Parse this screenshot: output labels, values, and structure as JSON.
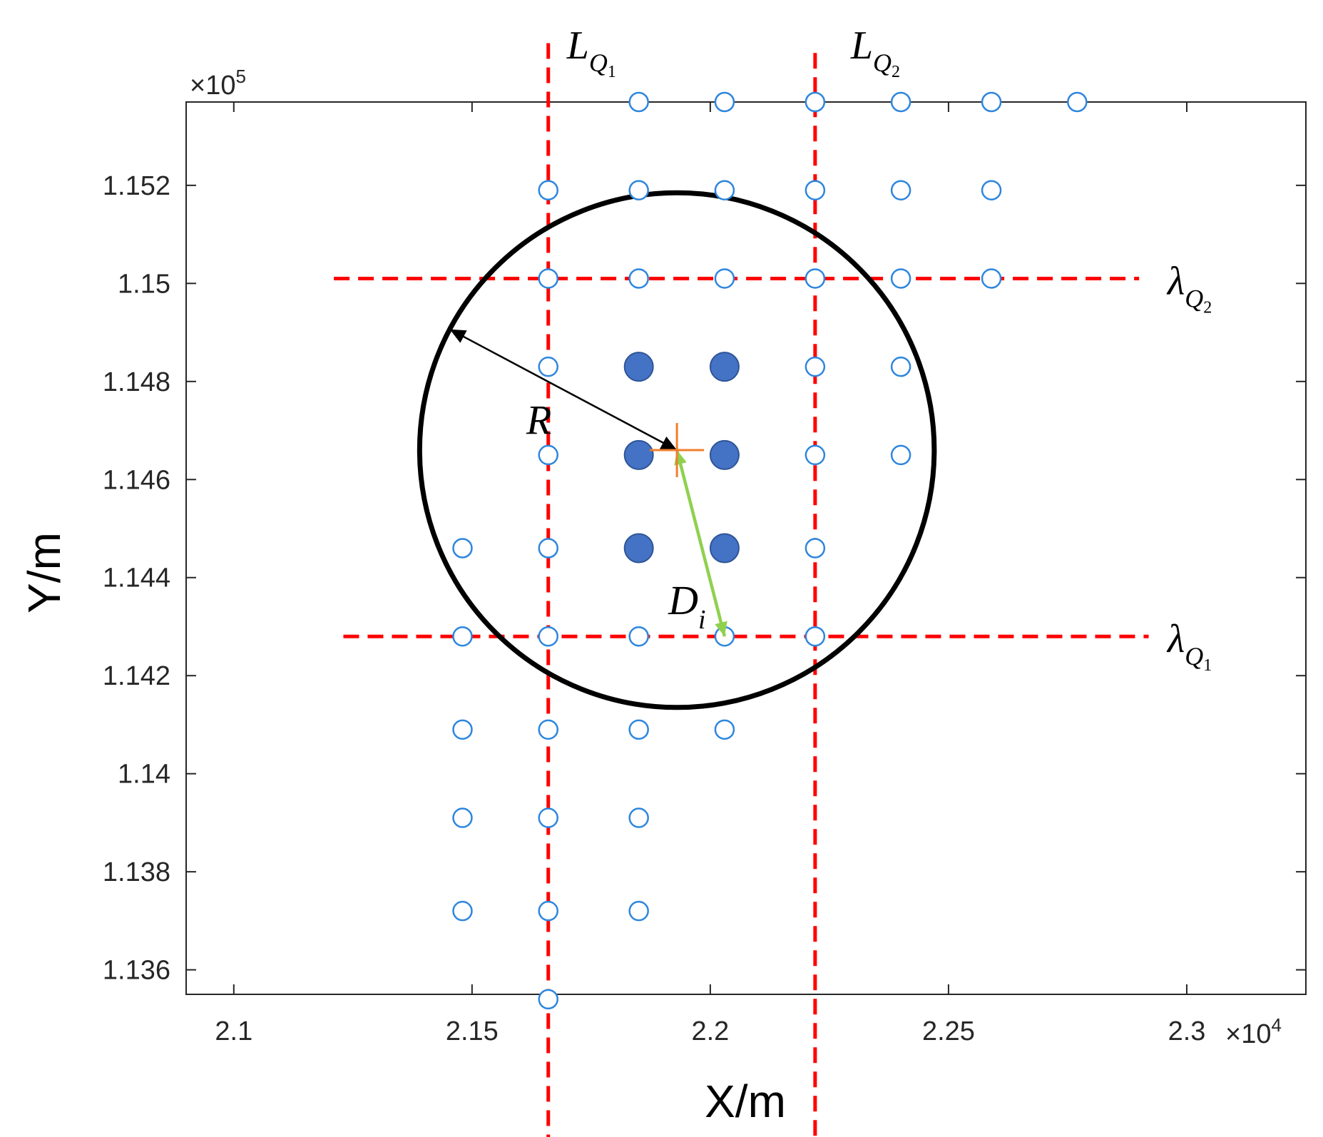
{
  "chart_data": {
    "type": "scatter",
    "title": "",
    "xlabel": "X/m",
    "ylabel": "Y/m",
    "x_exponent_label": "×10",
    "x_exponent_power": "4",
    "y_exponent_label": "×10",
    "y_exponent_power": "5",
    "xlim": [
      2.09,
      2.325
    ],
    "ylim": [
      1.1355,
      1.1537
    ],
    "xticks": [
      2.1,
      2.15,
      2.2,
      2.25,
      2.3
    ],
    "xtick_labels": [
      "2.1",
      "2.15",
      "2.2",
      "2.25",
      "2.3"
    ],
    "yticks": [
      1.136,
      1.138,
      1.14,
      1.142,
      1.144,
      1.146,
      1.148,
      1.15,
      1.152
    ],
    "ytick_labels": [
      "1.136",
      "1.138",
      "1.14",
      "1.142",
      "1.144",
      "1.146",
      "1.148",
      "1.15",
      "1.152"
    ],
    "grid": false,
    "series": [
      {
        "marker": "open-circle",
        "color": "#2e86de",
        "points": [
          [
            2.185,
            1.1537
          ],
          [
            2.203,
            1.1537
          ],
          [
            2.222,
            1.1537
          ],
          [
            2.24,
            1.1537
          ],
          [
            2.259,
            1.1537
          ],
          [
            2.277,
            1.1537
          ],
          [
            2.166,
            1.1519
          ],
          [
            2.185,
            1.1519
          ],
          [
            2.203,
            1.1519
          ],
          [
            2.222,
            1.1519
          ],
          [
            2.24,
            1.1519
          ],
          [
            2.259,
            1.1519
          ],
          [
            2.166,
            1.1501
          ],
          [
            2.185,
            1.1501
          ],
          [
            2.203,
            1.1501
          ],
          [
            2.222,
            1.1501
          ],
          [
            2.24,
            1.1501
          ],
          [
            2.259,
            1.1501
          ],
          [
            2.166,
            1.1483
          ],
          [
            2.222,
            1.1483
          ],
          [
            2.24,
            1.1483
          ],
          [
            2.166,
            1.1465
          ],
          [
            2.222,
            1.1465
          ],
          [
            2.24,
            1.1465
          ],
          [
            2.148,
            1.1446
          ],
          [
            2.166,
            1.1446
          ],
          [
            2.222,
            1.1446
          ],
          [
            2.148,
            1.1428
          ],
          [
            2.166,
            1.1428
          ],
          [
            2.185,
            1.1428
          ],
          [
            2.203,
            1.1428
          ],
          [
            2.222,
            1.1428
          ],
          [
            2.148,
            1.1409
          ],
          [
            2.166,
            1.1409
          ],
          [
            2.185,
            1.1409
          ],
          [
            2.203,
            1.1409
          ],
          [
            2.148,
            1.1391
          ],
          [
            2.166,
            1.1391
          ],
          [
            2.185,
            1.1391
          ],
          [
            2.148,
            1.1372
          ],
          [
            2.166,
            1.1372
          ],
          [
            2.185,
            1.1372
          ],
          [
            2.166,
            1.1354
          ]
        ]
      },
      {
        "marker": "filled-circle",
        "color": "#4472c4",
        "points": [
          [
            2.185,
            1.1483
          ],
          [
            2.203,
            1.1483
          ],
          [
            2.185,
            1.1465
          ],
          [
            2.203,
            1.1465
          ],
          [
            2.185,
            1.1446
          ],
          [
            2.203,
            1.1446
          ]
        ]
      }
    ],
    "center": {
      "x": 2.193,
      "y": 1.1466,
      "color": "#f07f2e"
    },
    "circle": {
      "cx": 2.193,
      "cy": 1.1466,
      "r": 0.054
    },
    "vlines": [
      {
        "x": 2.166,
        "y_from": 1.1322,
        "y_to": 1.1549,
        "label": "L",
        "sub": "Q",
        "sub2": "1"
      },
      {
        "x": 2.222,
        "y_from": 1.1324,
        "y_to": 1.1547,
        "label": "L",
        "sub": "Q",
        "sub2": "2"
      }
    ],
    "hlines": [
      {
        "y": 1.1501,
        "x_from": 2.121,
        "x_to": 2.29,
        "label": "λ",
        "sub": "Q",
        "sub2": "2"
      },
      {
        "y": 1.1428,
        "x_from": 2.123,
        "x_to": 2.292,
        "label": "λ",
        "sub": "Q",
        "sub2": "1"
      }
    ],
    "annotations": [
      {
        "text": "R",
        "from": [
          2.193,
          1.1466
        ],
        "to_angle_deg": 152,
        "color": "#000000"
      },
      {
        "text": "D",
        "sub": "i",
        "from": [
          2.193,
          1.1466
        ],
        "to": [
          2.203,
          1.1428
        ],
        "color": "#8fd14f"
      }
    ],
    "line_color": "#ff0000"
  }
}
